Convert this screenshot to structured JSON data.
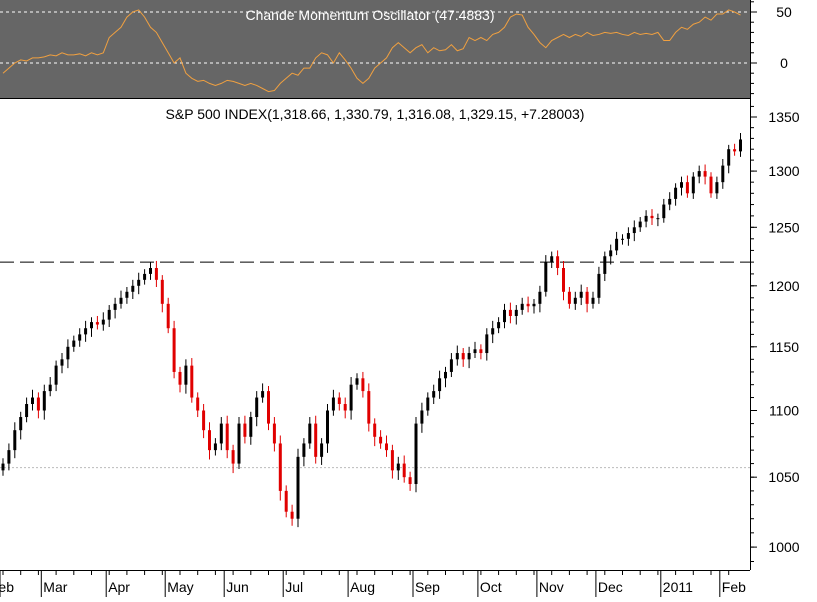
{
  "chart_data": [
    {
      "type": "line",
      "title": "Chande Momentum Oscillator (47.4883)",
      "y_ticks": [
        "50",
        "0"
      ],
      "y_tick_values": [
        50,
        0
      ],
      "ylim": [
        -35,
        60
      ],
      "reference_lines": [
        50,
        0
      ],
      "color": "#f0a040",
      "values": [
        -10,
        -5,
        0,
        3,
        2,
        5,
        5,
        6,
        8,
        7,
        10,
        8,
        8,
        9,
        7,
        10,
        8,
        10,
        25,
        30,
        35,
        45,
        50,
        52,
        45,
        35,
        30,
        20,
        10,
        0,
        5,
        -10,
        -15,
        -18,
        -17,
        -20,
        -22,
        -20,
        -17,
        -18,
        -20,
        -22,
        -20,
        -22,
        -25,
        -28,
        -27,
        -20,
        -15,
        -10,
        -12,
        -5,
        -5,
        5,
        10,
        8,
        0,
        10,
        3,
        -5,
        -15,
        -20,
        -15,
        -5,
        0,
        5,
        15,
        20,
        15,
        10,
        15,
        18,
        10,
        15,
        12,
        13,
        18,
        12,
        14,
        25,
        22,
        25,
        22,
        28,
        30,
        35,
        45,
        48,
        47,
        35,
        28,
        20,
        15,
        22,
        25,
        28,
        25,
        28,
        26,
        30,
        27,
        28,
        30,
        29,
        30,
        28,
        27,
        30,
        28,
        29,
        28,
        30,
        22,
        22,
        30,
        35,
        33,
        38,
        40,
        45,
        42,
        48,
        48,
        52,
        50,
        47
      ]
    },
    {
      "type": "candlestick",
      "title": "S&P 500 INDEX(1,318.66, 1,330.79, 1,316.08, 1,329.15, +7.28003)",
      "scale": "log",
      "ylim": [
        985,
        1365
      ],
      "y_ticks": [
        "1350",
        "1300",
        "1250",
        "1200",
        "1150",
        "1100",
        "1050",
        "1000"
      ],
      "y_tick_values": [
        1350,
        1300,
        1250,
        1200,
        1150,
        1100,
        1050,
        1000
      ],
      "x_ticks": [
        "eb",
        "Mar",
        "Apr",
        "May",
        "Jun",
        "Jul",
        "Aug",
        "Sep",
        "Oct",
        "Nov",
        "Dec",
        "2011",
        "Feb"
      ],
      "x_tick_bar_index": [
        -1,
        7,
        18,
        28,
        38,
        48,
        59,
        70,
        81,
        91,
        101,
        112,
        122
      ],
      "reference_lines": [
        {
          "value": 1220,
          "style": "dashed"
        },
        {
          "value": 1057,
          "style": "dotted"
        }
      ],
      "up_color": "#000000",
      "down_color": "#e00000",
      "closes": [
        1060,
        1070,
        1085,
        1095,
        1105,
        1110,
        1100,
        1115,
        1120,
        1135,
        1140,
        1150,
        1155,
        1160,
        1165,
        1170,
        1168,
        1172,
        1180,
        1185,
        1190,
        1195,
        1200,
        1205,
        1210,
        1215,
        1205,
        1185,
        1165,
        1130,
        1120,
        1135,
        1110,
        1100,
        1085,
        1070,
        1075,
        1090,
        1070,
        1060,
        1090,
        1080,
        1095,
        1110,
        1115,
        1090,
        1075,
        1040,
        1025,
        1020,
        1065,
        1075,
        1090,
        1065,
        1075,
        1100,
        1110,
        1105,
        1100,
        1120,
        1125,
        1115,
        1090,
        1080,
        1075,
        1070,
        1055,
        1060,
        1050,
        1045,
        1090,
        1100,
        1110,
        1115,
        1125,
        1130,
        1140,
        1145,
        1140,
        1145,
        1148,
        1145,
        1160,
        1165,
        1170,
        1180,
        1175,
        1180,
        1185,
        1183,
        1185,
        1195,
        1220,
        1225,
        1215,
        1195,
        1185,
        1190,
        1195,
        1185,
        1190,
        1210,
        1225,
        1230,
        1240,
        1240,
        1245,
        1250,
        1255,
        1260,
        1258,
        1258,
        1270,
        1275,
        1285,
        1290,
        1280,
        1295,
        1300,
        1295,
        1280,
        1290,
        1305,
        1320,
        1318,
        1329
      ]
    }
  ]
}
